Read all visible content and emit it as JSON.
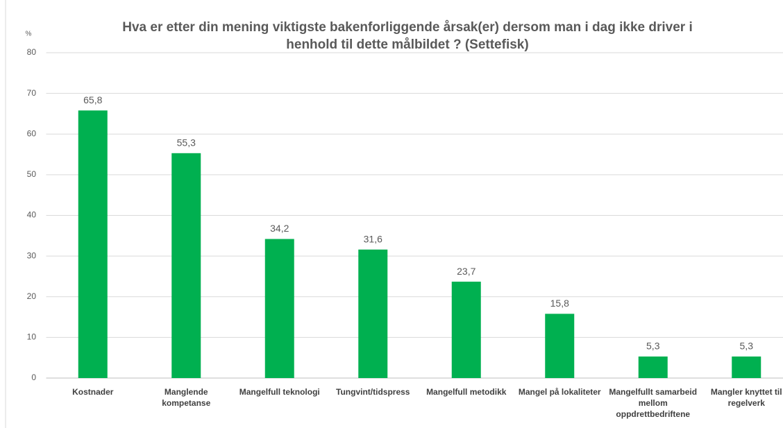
{
  "chart_data": {
    "type": "bar",
    "title": "Hva er etter din mening viktigste bakenforliggende årsak(er) dersom man i dag ikke driver i henhold til dette målbildet ? (Settefisk)",
    "y_unit": "%",
    "categories": [
      "Kostnader",
      "Manglende kompetanse",
      "Mangelfull teknologi",
      "Tungvint/tidspress",
      "Mangelfull metodikk",
      "Mangel på lokaliteter",
      "Mangelfullt samarbeid mellom oppdrettbedriftene",
      "Mangler knyttet til regelverk"
    ],
    "values": [
      65.8,
      55.3,
      34.2,
      31.6,
      23.7,
      15.8,
      5.3,
      5.3
    ],
    "value_labels": [
      "65,8",
      "55,3",
      "34,2",
      "31,6",
      "23,7",
      "15,8",
      "5,3",
      "5,3"
    ],
    "color": "#00b050",
    "ylim": [
      0,
      80
    ],
    "yticks": [
      0,
      10,
      20,
      30,
      40,
      50,
      60,
      70,
      80
    ],
    "grid": true
  }
}
